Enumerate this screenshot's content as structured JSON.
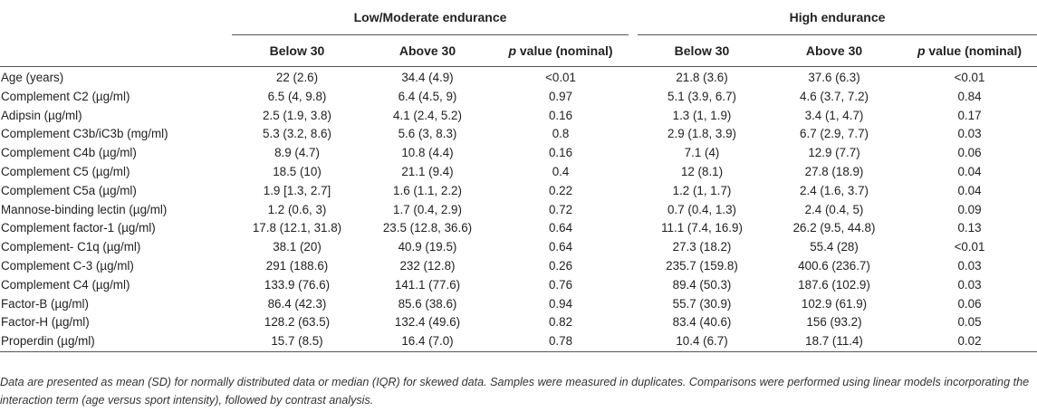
{
  "table": {
    "group_headers": {
      "low": "Low/Moderate endurance",
      "high": "High endurance"
    },
    "sub_headers": {
      "below": "Below 30",
      "above": "Above 30",
      "p_letter": "p",
      "p_rest": " value (nominal)"
    },
    "rows": [
      {
        "label": "Age (years)",
        "low_below": "22 (2.6)",
        "low_above": "34.4 (4.9)",
        "low_p": "<0.01",
        "high_below": "21.8 (3.6)",
        "high_above": "37.6 (6.3)",
        "high_p": "<0.01"
      },
      {
        "label": "Complement C2 (µg/ml)",
        "low_below": "6.5 (4, 9.8)",
        "low_above": "6.4 (4.5, 9)",
        "low_p": "0.97",
        "high_below": "5.1 (3.9, 6.7)",
        "high_above": "4.6 (3.7, 7.2)",
        "high_p": "0.84"
      },
      {
        "label": "Adipsin (µg/ml)",
        "low_below": "2.5 (1.9, 3.8)",
        "low_above": "4.1 (2.4, 5.2)",
        "low_p": "0.16",
        "high_below": "1.3 (1, 1.9)",
        "high_above": "3.4 (1, 4.7)",
        "high_p": "0.17"
      },
      {
        "label": "Complement C3b/iC3b (mg/ml)",
        "low_below": "5.3 (3.2, 8.6)",
        "low_above": "5.6 (3, 8.3)",
        "low_p": "0.8",
        "high_below": "2.9 (1.8, 3.9)",
        "high_above": "6.7 (2.9, 7.7)",
        "high_p": "0.03"
      },
      {
        "label": "Complement C4b (µg/ml)",
        "low_below": "8.9 (4.7)",
        "low_above": "10.8 (4.4)",
        "low_p": "0.16",
        "high_below": "7.1 (4)",
        "high_above": "12.9 (7.7)",
        "high_p": "0.06"
      },
      {
        "label": "Complement C5 (µg/ml)",
        "low_below": "18.5 (10)",
        "low_above": "21.1 (9.4)",
        "low_p": "0.4",
        "high_below": "12 (8.1)",
        "high_above": "27.8 (18.9)",
        "high_p": "0.04"
      },
      {
        "label": "Complement C5a (µg/ml)",
        "low_below": "1.9 [1.3, 2.7]",
        "low_above": "1.6 (1.1, 2.2)",
        "low_p": "0.22",
        "high_below": "1.2 (1, 1.7)",
        "high_above": "2.4 (1.6, 3.7)",
        "high_p": "0.04"
      },
      {
        "label": "Mannose-binding lectin (µg/ml)",
        "low_below": "1.2 (0.6, 3)",
        "low_above": "1.7 (0.4, 2.9)",
        "low_p": "0.72",
        "high_below": "0.7 (0.4, 1.3)",
        "high_above": "2.4 (0.4, 5)",
        "high_p": "0.09"
      },
      {
        "label": "Complement factor-1 (µg/ml)",
        "low_below": "17.8 (12.1, 31.8)",
        "low_above": "23.5 (12.8, 36.6)",
        "low_p": "0.64",
        "high_below": "11.1 (7.4, 16.9)",
        "high_above": "26.2 (9.5, 44.8)",
        "high_p": "0.13"
      },
      {
        "label": "Complement- C1q (µg/ml)",
        "low_below": "38.1 (20)",
        "low_above": "40.9 (19.5)",
        "low_p": "0.64",
        "high_below": "27.3 (18.2)",
        "high_above": "55.4 (28)",
        "high_p": "<0.01"
      },
      {
        "label": "Complement C-3 (µg/ml)",
        "low_below": "291 (188.6)",
        "low_above": "232 (12.8)",
        "low_p": "0.26",
        "high_below": "235.7 (159.8)",
        "high_above": "400.6 (236.7)",
        "high_p": "0.03"
      },
      {
        "label": "Complement C4 (µg/ml)",
        "low_below": "133.9 (76.6)",
        "low_above": "141.1 (77.6)",
        "low_p": "0.76",
        "high_below": "89.4 (50.3)",
        "high_above": "187.6 (102.9)",
        "high_p": "0.03"
      },
      {
        "label": "Factor-B (µg/ml)",
        "low_below": "86.4 (42.3)",
        "low_above": "85.6 (38.6)",
        "low_p": "0.94",
        "high_below": "55.7 (30.9)",
        "high_above": "102.9 (61.9)",
        "high_p": "0.06"
      },
      {
        "label": "Factor-H (µg/ml)",
        "low_below": "128.2 (63.5)",
        "low_above": "132.4 (49.6)",
        "low_p": "0.82",
        "high_below": "83.4 (40.6)",
        "high_above": "156 (93.2)",
        "high_p": "0.05"
      },
      {
        "label": "Properdin (µg/ml)",
        "low_below": "15.7 (8.5)",
        "low_above": "16.4 (7.0)",
        "low_p": "0.78",
        "high_below": "10.4 (6.7)",
        "high_above": "18.7 (11.4)",
        "high_p": "0.02"
      }
    ]
  },
  "footnote": "Data are presented as mean (SD) for normally distributed data or median (IQR) for skewed data. Samples were measured in duplicates. Comparisons were performed using linear models incorporating the interaction term (age versus sport intensity), followed by contrast analysis."
}
